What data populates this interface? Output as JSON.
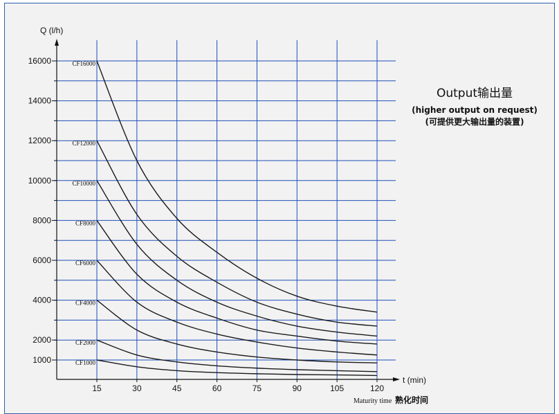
{
  "chart_data": {
    "type": "line",
    "ylabel": "Q (l/h)",
    "xlabel": "t (min)",
    "xlabel_footer_en": "Maturity time",
    "xlabel_footer_cn": "熟化时间",
    "x_ticks": [
      15,
      30,
      45,
      60,
      75,
      90,
      105,
      120
    ],
    "y_ticks": [
      1000,
      2000,
      4000,
      6000,
      8000,
      10000,
      12000,
      14000,
      16000
    ],
    "xlim": [
      0,
      120
    ],
    "ylim": [
      0,
      16500
    ],
    "grid": true,
    "annotation": {
      "title": "Output输出量",
      "line1": "(higher output on request)",
      "line2": "(可提供更大输出量的装置)"
    },
    "x": [
      15,
      30,
      45,
      60,
      75,
      90,
      105,
      120
    ],
    "series": [
      {
        "name": "CF16000",
        "values": [
          16000,
          11000,
          8100,
          6400,
          5100,
          4200,
          3700,
          3400
        ]
      },
      {
        "name": "CF12000",
        "values": [
          12000,
          8300,
          6200,
          4900,
          3900,
          3300,
          2900,
          2700
        ]
      },
      {
        "name": "CF10000",
        "values": [
          10000,
          6800,
          5000,
          3900,
          3200,
          2700,
          2400,
          2200
        ]
      },
      {
        "name": "CF8000",
        "values": [
          8000,
          5300,
          3900,
          3100,
          2500,
          2200,
          1950,
          1800
        ]
      },
      {
        "name": "CF6000",
        "values": [
          6000,
          3900,
          2900,
          2300,
          1900,
          1600,
          1400,
          1250
        ]
      },
      {
        "name": "CF4000",
        "values": [
          4000,
          2500,
          1800,
          1400,
          1150,
          1000,
          900,
          850
        ]
      },
      {
        "name": "CF2000",
        "values": [
          2000,
          1250,
          900,
          700,
          580,
          500,
          450,
          400
        ]
      },
      {
        "name": "CF1000",
        "values": [
          1000,
          650,
          450,
          350,
          290,
          250,
          230,
          200
        ]
      }
    ],
    "colors": {
      "grid": "#1f4fb8",
      "curve": "#1a1a1a",
      "axis": "#111111"
    }
  }
}
